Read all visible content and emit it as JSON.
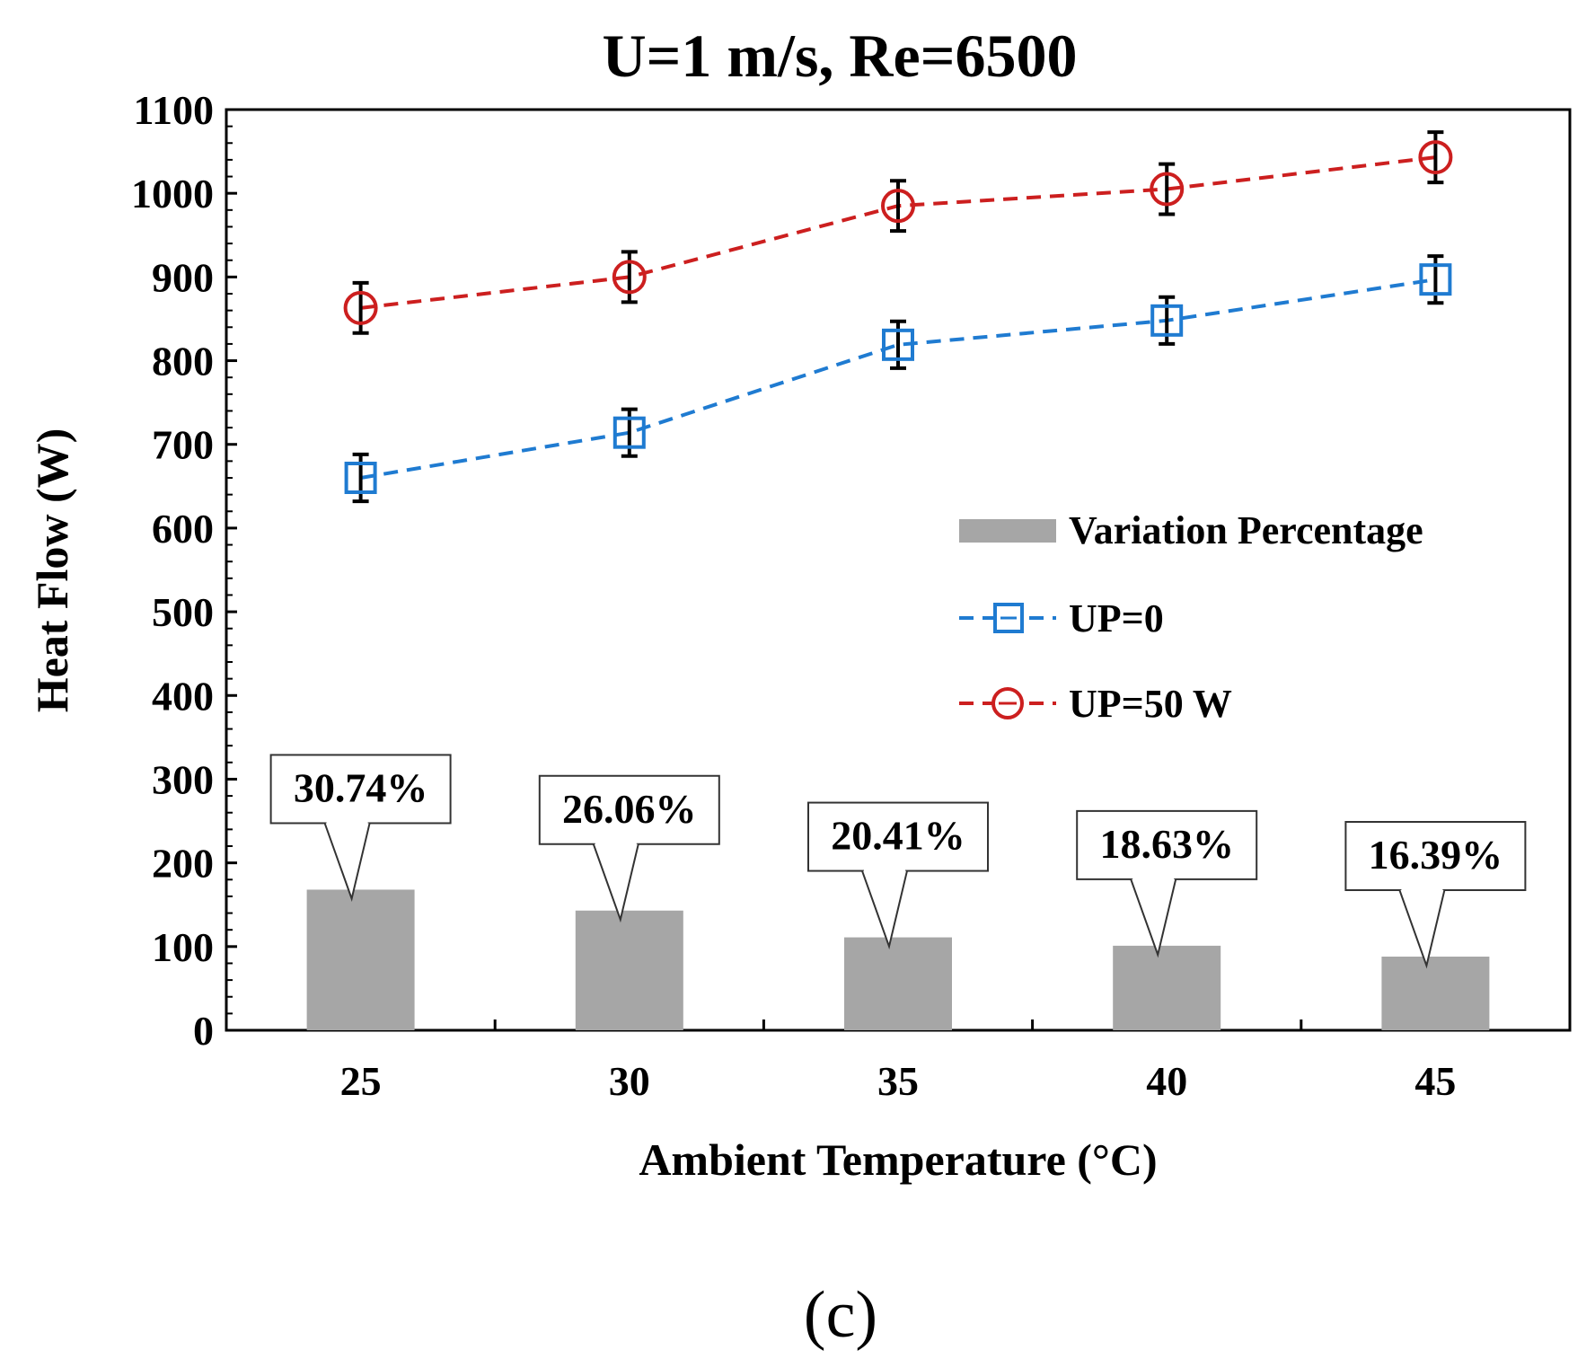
{
  "chart_data": {
    "type": "bar+line",
    "title": "U=1 m/s, Re=6500",
    "xlabel": "Ambient Temperature  (°C)",
    "ylabel": "Heat Flow (W)",
    "categories": [
      "25",
      "30",
      "35",
      "40",
      "45"
    ],
    "ylim": [
      0,
      1100
    ],
    "yticks": [
      "0",
      "100",
      "200",
      "300",
      "400",
      "500",
      "600",
      "700",
      "800",
      "900",
      "1000",
      "1100"
    ],
    "grid": false,
    "legend_position": "center-right",
    "bar_series": {
      "name": "Variation Percentage",
      "color": "#a6a6a6",
      "values": [
        168,
        143,
        111,
        101,
        88
      ],
      "labels": [
        "30.74%",
        "26.06%",
        "20.41%",
        "18.63%",
        "16.39%"
      ]
    },
    "series": [
      {
        "name": "UP=0",
        "color": "#1f7bd1",
        "marker": "square",
        "values": [
          660,
          714,
          819,
          848,
          897
        ],
        "error": [
          28,
          28,
          28,
          28,
          28
        ]
      },
      {
        "name": "UP=50 W",
        "color": "#cc1f1f",
        "marker": "circle",
        "values": [
          863,
          900,
          985,
          1005,
          1043
        ],
        "error": [
          30,
          30,
          30,
          30,
          30
        ]
      }
    ]
  },
  "caption": "(c)"
}
